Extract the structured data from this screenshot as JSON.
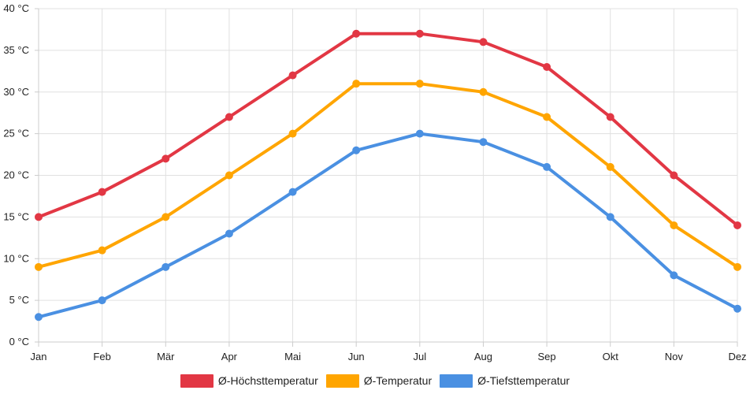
{
  "chart_data": {
    "type": "line",
    "categories": [
      "Jan",
      "Feb",
      "Mär",
      "Apr",
      "Mai",
      "Jun",
      "Jul",
      "Aug",
      "Sep",
      "Okt",
      "Nov",
      "Dez"
    ],
    "ylim": [
      0,
      40
    ],
    "ytick_step": 5,
    "ytick_labels": [
      "0 °C",
      "5 °C",
      "10 °C",
      "15 °C",
      "20 °C",
      "25 °C",
      "30 °C",
      "35 °C",
      "40 °C"
    ],
    "grid": true,
    "legend_position": "bottom-center",
    "series": [
      {
        "name": "Ø-Höchsttemperatur",
        "color": "#e23744",
        "values": [
          15,
          18,
          22,
          27,
          32,
          37,
          37,
          36,
          33,
          27,
          20,
          14
        ]
      },
      {
        "name": "Ø-Temperatur",
        "color": "#ffa500",
        "values": [
          9,
          11,
          15,
          20,
          25,
          31,
          31,
          30,
          27,
          21,
          14,
          9
        ]
      },
      {
        "name": "Ø-Tiefsttemperatur",
        "color": "#4a90e2",
        "values": [
          3,
          5,
          9,
          13,
          18,
          23,
          25,
          24,
          21,
          15,
          8,
          4
        ]
      }
    ]
  }
}
